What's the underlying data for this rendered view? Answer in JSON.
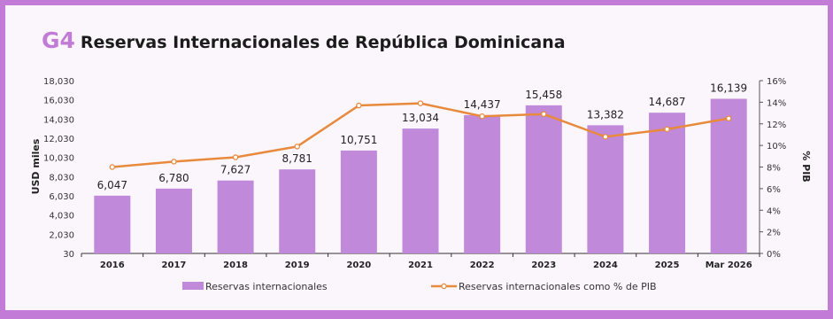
{
  "figure": {
    "code": "G4",
    "title": "Reservas Internacionales de República Dominicana"
  },
  "colors": {
    "border": "#c27bd6",
    "bar": "#c089d9",
    "line": "#e88a3c"
  },
  "chart_data": {
    "type": "bar",
    "categories": [
      "2016",
      "2017",
      "2018",
      "2019",
      "2020",
      "2021",
      "2022",
      "2023",
      "2024",
      "2025",
      "Mar 2026"
    ],
    "series": [
      {
        "name": "Reservas internacionales",
        "type": "bar",
        "axis": "left",
        "values": [
          6047,
          6780,
          7627,
          8781,
          10751,
          13034,
          14437,
          15458,
          13382,
          14687,
          16139
        ],
        "labels": [
          "6,047",
          "6,780",
          "7,627",
          "8,781",
          "10,751",
          "13,034",
          "14,437",
          "15,458",
          "13,382",
          "14,687",
          "16,139"
        ]
      },
      {
        "name": "Reservas internacionales como % de PIB",
        "type": "line",
        "axis": "right",
        "values": [
          8.0,
          8.5,
          8.9,
          9.9,
          13.7,
          13.9,
          12.7,
          12.9,
          10.8,
          11.5,
          12.5
        ]
      }
    ],
    "ylabel": "USD miles",
    "y2label": "% PIB",
    "ylim": [
      30,
      18030
    ],
    "yticks": [
      "30",
      "2,030",
      "4,030",
      "6,030",
      "8,030",
      "10,030",
      "12,030",
      "14,030",
      "16,030",
      "18,030"
    ],
    "y2lim": [
      0,
      16
    ],
    "y2ticks": [
      "0%",
      "2%",
      "4%",
      "6%",
      "8%",
      "10%",
      "12%",
      "14%",
      "16%"
    ],
    "grid": false,
    "legend": "bottom"
  }
}
